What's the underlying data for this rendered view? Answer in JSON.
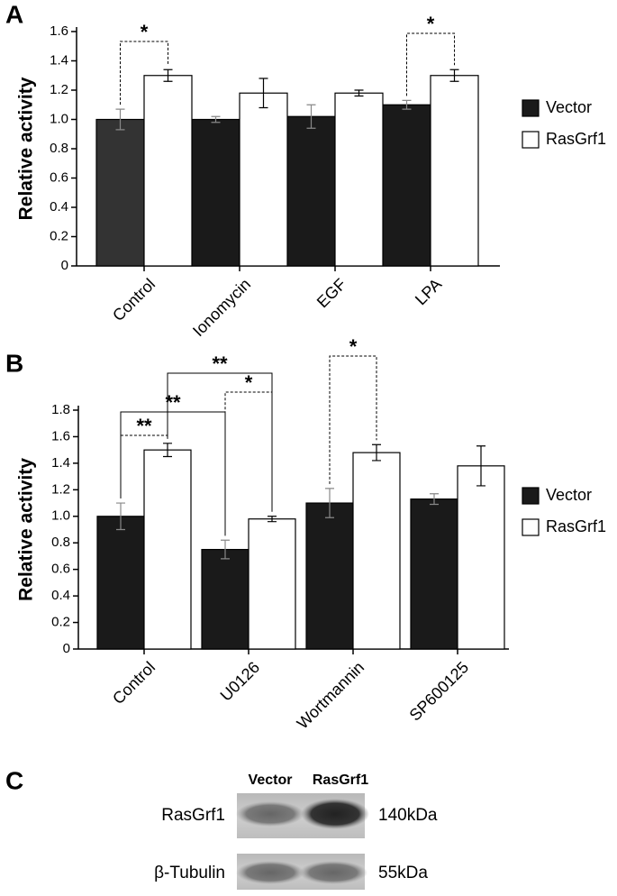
{
  "chart_data": [
    {
      "type": "bar",
      "panel": "A",
      "y_label": "Relative activity",
      "categories": [
        "Control",
        "Ionomycin",
        "EGF",
        "LPA"
      ],
      "series": [
        {
          "name": "Vector",
          "color": "#1a1a1a",
          "values": [
            1.0,
            1.0,
            1.02,
            1.1
          ],
          "errors": [
            0.07,
            0.02,
            0.08,
            0.03
          ]
        },
        {
          "name": "RasGrf1",
          "color": "#ffffff",
          "values": [
            1.3,
            1.18,
            1.18,
            1.3
          ],
          "errors": [
            0.04,
            0.1,
            0.02,
            0.04
          ]
        }
      ],
      "ylim": [
        0,
        1.6
      ],
      "yticks": [
        0,
        0.2,
        0.4,
        0.6,
        0.8,
        {
          "value": 1,
          "label": "1.0"
        },
        1.2,
        1.4,
        1.6
      ],
      "annotations": [
        "*",
        "*"
      ]
    },
    {
      "type": "bar",
      "panel": "B",
      "y_label": "Relative activity",
      "categories": [
        "Control",
        "U0126",
        "Wortmannin",
        "SP600125"
      ],
      "series": [
        {
          "name": "Vector",
          "color": "#1a1a1a",
          "values": [
            1.0,
            0.75,
            1.1,
            1.13
          ],
          "errors": [
            0.1,
            0.07,
            0.11,
            0.04
          ]
        },
        {
          "name": "RasGrf1",
          "color": "#ffffff",
          "values": [
            1.5,
            0.98,
            1.48,
            1.38
          ],
          "errors": [
            0.05,
            0.02,
            0.06,
            0.15
          ]
        }
      ],
      "ylim": [
        0,
        1.8
      ],
      "yticks": [
        0,
        0.2,
        0.4,
        0.6,
        0.8,
        {
          "value": 1,
          "label": "1.0"
        },
        1.2,
        1.4,
        1.6,
        1.8
      ],
      "annotations": [
        "**",
        "**",
        "**",
        "*",
        "*"
      ]
    }
  ],
  "blot": {
    "panel": "C",
    "columns": [
      "Vector",
      "RasGrf1"
    ],
    "rows": [
      {
        "label": "RasGrf1",
        "size": "140kDa"
      },
      {
        "label": "β-Tubulin",
        "size": "55kDa"
      }
    ]
  }
}
